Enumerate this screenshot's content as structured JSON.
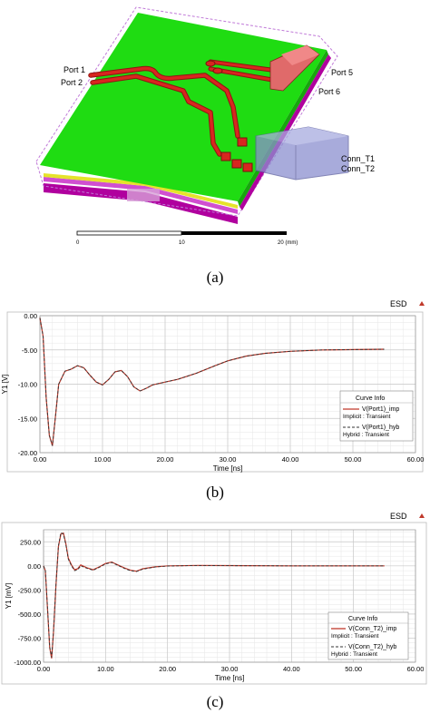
{
  "figure_a": {
    "caption": "(a)",
    "labels": {
      "port1": "Port 1",
      "port2": "Port 2",
      "port5": "Port 5",
      "port6": "Port 6",
      "conn_t1": "Conn_T1",
      "conn_t2": "Conn_T2"
    },
    "scale_ticks": [
      "0",
      "10",
      "20 (mm)"
    ],
    "colors": {
      "board": "#1fdc12",
      "trace": "#c8201b",
      "substrate": "#b0009e",
      "connector": "#8c8fcf"
    }
  },
  "figure_b": {
    "caption": "(b)",
    "brand": "ESD",
    "legend_title": "Curve Info",
    "legend_entries": [
      {
        "name": "V(Port1)_imp",
        "sub": "Implicit : Transient",
        "style": "solid",
        "color": "#c0392b"
      },
      {
        "name": "V(Port1)_hyb",
        "sub": "Hybrid : Transient",
        "style": "dashed",
        "color": "#333333"
      }
    ]
  },
  "figure_c": {
    "caption": "(c)",
    "brand": "ESD",
    "legend_title": "Curve Info",
    "legend_entries": [
      {
        "name": "V(Conn_T2)_imp",
        "sub": "Implicit : Transient",
        "style": "solid",
        "color": "#c0392b"
      },
      {
        "name": "V(Conn_T2)_hyb",
        "sub": "Hybrid : Transient",
        "style": "dashed",
        "color": "#333333"
      }
    ]
  },
  "chart_data": [
    {
      "type": "line",
      "xlabel": "Time [ns]",
      "ylabel": "Y1 [V]",
      "xlim": [
        0,
        60
      ],
      "ylim": [
        -20,
        0
      ],
      "xticks": [
        "0.00",
        "10.00",
        "20.00",
        "30.00",
        "40.00",
        "50.00",
        "60.00"
      ],
      "yticks": [
        "0.00",
        "-5.00",
        "-10.00",
        "-15.00",
        "-20.00"
      ],
      "grid": true,
      "legend_position": "right",
      "series": [
        {
          "name": "V(Port1)_imp",
          "x": [
            0,
            0.5,
            1,
            1.5,
            2,
            2.5,
            3,
            4,
            5,
            6,
            7,
            8,
            9,
            10,
            11,
            12,
            13,
            14,
            15,
            16,
            17,
            18,
            20,
            22,
            25,
            28,
            30,
            33,
            36,
            40,
            45,
            50,
            55
          ],
          "y": [
            -0.3,
            -3,
            -12,
            -17.5,
            -19,
            -14.5,
            -10,
            -8.1,
            -7.8,
            -7.3,
            -7.6,
            -8.7,
            -9.7,
            -10.1,
            -9.3,
            -8.2,
            -8.0,
            -8.9,
            -10.4,
            -11.0,
            -10.6,
            -10.1,
            -9.7,
            -9.3,
            -8.4,
            -7.3,
            -6.6,
            -5.9,
            -5.5,
            -5.2,
            -5.0,
            -4.95,
            -4.9
          ]
        },
        {
          "name": "V(Port1)_hyb",
          "x": [
            0,
            0.5,
            1,
            1.5,
            2,
            2.5,
            3,
            4,
            5,
            6,
            7,
            8,
            9,
            10,
            11,
            12,
            13,
            14,
            15,
            16,
            17,
            18,
            20,
            22,
            25,
            28,
            30,
            33,
            36,
            40,
            45,
            50,
            55
          ],
          "y": [
            -0.3,
            -3,
            -12,
            -17.5,
            -19,
            -14.5,
            -10,
            -8.1,
            -7.8,
            -7.3,
            -7.6,
            -8.7,
            -9.7,
            -10.1,
            -9.3,
            -8.2,
            -8.0,
            -8.9,
            -10.4,
            -11.0,
            -10.6,
            -10.1,
            -9.7,
            -9.3,
            -8.4,
            -7.3,
            -6.6,
            -5.9,
            -5.5,
            -5.2,
            -5.0,
            -4.95,
            -4.9
          ]
        }
      ]
    },
    {
      "type": "line",
      "xlabel": "Time [ns]",
      "ylabel": "Y1 [mV]",
      "xlim": [
        0,
        60
      ],
      "ylim": [
        -1000,
        375
      ],
      "xticks": [
        "0.00",
        "10.00",
        "20.00",
        "30.00",
        "40.00",
        "50.00",
        "60.00"
      ],
      "yticks": [
        "250.00",
        "0.00",
        "-250.00",
        "-500.00",
        "-750.00",
        "-1000.00"
      ],
      "grid": true,
      "legend_position": "bottom-right",
      "series": [
        {
          "name": "V(Conn_T2)_imp",
          "x": [
            0,
            0.3,
            0.6,
            1,
            1.3,
            1.6,
            2,
            2.4,
            2.8,
            3.2,
            3.6,
            4,
            4.5,
            5,
            5.5,
            6,
            7,
            8,
            9,
            10,
            11,
            12,
            13,
            14,
            15,
            16,
            18,
            20,
            25,
            30,
            40,
            50,
            55
          ],
          "y": [
            0,
            -50,
            -400,
            -850,
            -960,
            -700,
            -200,
            200,
            330,
            340,
            230,
            80,
            10,
            -40,
            -30,
            10,
            -20,
            -40,
            -10,
            25,
            40,
            10,
            -20,
            -45,
            -55,
            -30,
            -10,
            0,
            5,
            3,
            0,
            0,
            0
          ]
        },
        {
          "name": "V(Conn_T2)_hyb",
          "x": [
            0,
            0.3,
            0.6,
            1,
            1.3,
            1.6,
            2,
            2.4,
            2.8,
            3.2,
            3.6,
            4,
            4.5,
            5,
            5.5,
            6,
            7,
            8,
            9,
            10,
            11,
            12,
            13,
            14,
            15,
            16,
            18,
            20,
            25,
            30,
            40,
            50,
            55
          ],
          "y": [
            0,
            -50,
            -390,
            -840,
            -950,
            -690,
            -190,
            210,
            345,
            330,
            220,
            70,
            0,
            -50,
            -40,
            0,
            -25,
            -45,
            -15,
            20,
            35,
            5,
            -25,
            -50,
            -58,
            -35,
            -12,
            -2,
            4,
            2,
            0,
            0,
            0
          ]
        }
      ]
    }
  ]
}
